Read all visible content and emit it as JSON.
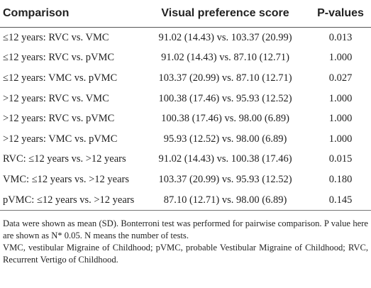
{
  "table": {
    "header": [
      "Comparison",
      "Visual preference score",
      "P-values"
    ],
    "rows": [
      [
        "≤12 years: RVC vs. VMC",
        "91.02 (14.43) vs. 103.37 (20.99)",
        "0.013"
      ],
      [
        "≤12 years: RVC vs. pVMC",
        "91.02 (14.43) vs. 87.10 (12.71)",
        "1.000"
      ],
      [
        "≤12 years: VMC vs. pVMC",
        "103.37 (20.99) vs. 87.10 (12.71)",
        "0.027"
      ],
      [
        ">12 years: RVC vs. VMC",
        "100.38 (17.46) vs. 95.93 (12.52)",
        "1.000"
      ],
      [
        ">12 years: RVC vs. pVMC",
        "100.38 (17.46) vs. 98.00 (6.89)",
        "1.000"
      ],
      [
        ">12 years: VMC vs. pVMC",
        "95.93 (12.52) vs. 98.00 (6.89)",
        "1.000"
      ],
      [
        "RVC: ≤12 years vs. >12 years",
        "91.02 (14.43) vs. 100.38 (17.46)",
        "0.015"
      ],
      [
        "VMC: ≤12 years vs. >12 years",
        "103.37 (20.99) vs. 95.93 (12.52)",
        "0.180"
      ],
      [
        "pVMC: ≤12 years vs. >12 years",
        "87.10 (12.71) vs. 98.00 (6.89)",
        "0.145"
      ]
    ]
  },
  "footnotes": [
    "Data were shown as mean (SD). Bonterroni test was performed for pairwise comparison. P value here are shown as N* 0.05. N means the number of tests.",
    "VMC, vestibular Migraine of Childhood; pVMC, probable Vestibular Migraine of Childhood; RVC, Recurrent Vertigo of Childhood."
  ]
}
